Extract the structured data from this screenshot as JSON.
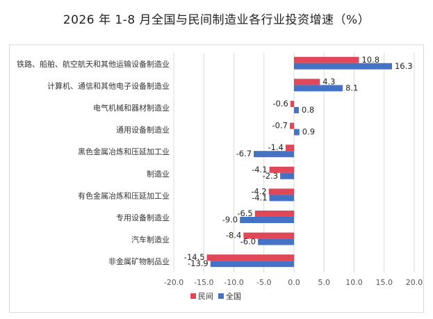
{
  "chart_data": {
    "type": "bar",
    "orientation": "horizontal",
    "title": "2026 年 1-8 月全国与民间制造业各行业投资增速（%）",
    "categories": [
      "铁路、船舶、航空航天和其他运输设备制造业",
      "计算机、通信和其他电子设备制造业",
      "电气机械和器材制造业",
      "通用设备制造业",
      "黑色金属冶炼和压延加工业",
      "制造业",
      "有色金属冶炼和压延加工业",
      "专用设备制造业",
      "汽车制造业",
      "非金属矿物制品业"
    ],
    "series": [
      {
        "name": "民间",
        "color": "#e0485a",
        "values": [
          10.8,
          4.3,
          -0.6,
          -0.7,
          -1.4,
          -4.1,
          -4.2,
          -6.5,
          -8.4,
          -14.5
        ]
      },
      {
        "name": "全国",
        "color": "#4472c4",
        "values": [
          16.3,
          8.1,
          0.8,
          0.9,
          -6.7,
          -2.3,
          -4.1,
          -9.0,
          -6.0,
          -13.9
        ]
      }
    ],
    "xlim": [
      -20,
      20
    ],
    "xticks": [
      -20,
      -15,
      -10,
      -5,
      0,
      5,
      10,
      15,
      20
    ],
    "xtick_labels": [
      "-20.0",
      "-15.0",
      "-10.0",
      "-5.0",
      "0.0",
      "5.0",
      "10.0",
      "15.0",
      "20.0"
    ],
    "grid": true,
    "legend_position": "bottom"
  }
}
